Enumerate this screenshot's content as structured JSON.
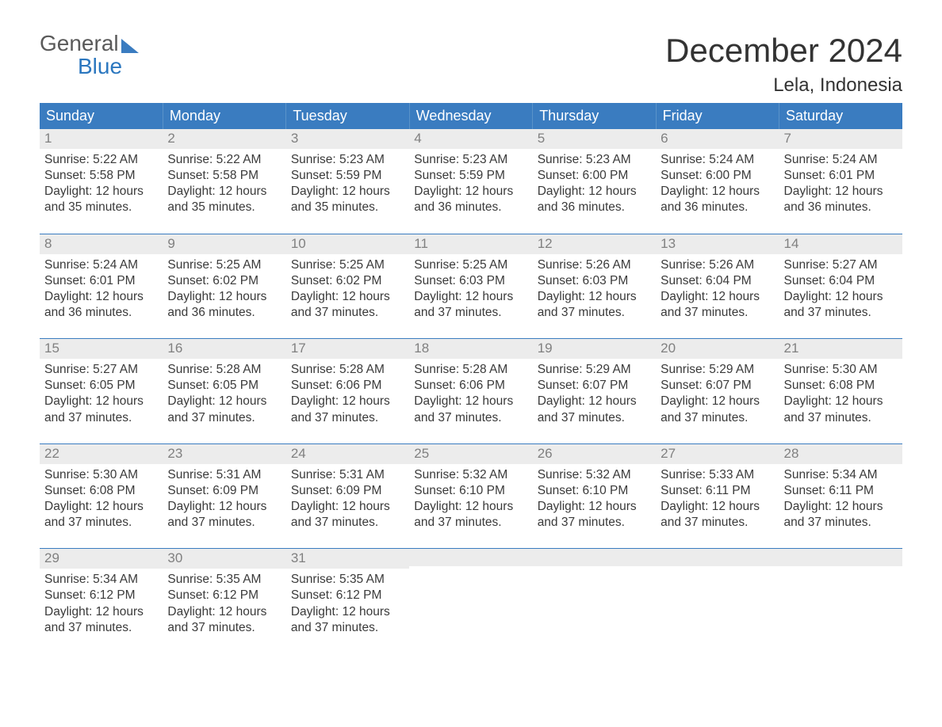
{
  "logo": {
    "line1": "General",
    "line2": "Blue"
  },
  "title": "December 2024",
  "location": "Lela, Indonesia",
  "colors": {
    "header_bg": "#3a7cc0",
    "header_text": "#ffffff",
    "daynum_bg": "#ececec",
    "daynum_text": "#808080",
    "body_text": "#3a3a3a",
    "logo_blue": "#2b77bf",
    "week_border": "#3a7cc0"
  },
  "day_names": [
    "Sunday",
    "Monday",
    "Tuesday",
    "Wednesday",
    "Thursday",
    "Friday",
    "Saturday"
  ],
  "weeks": [
    [
      {
        "n": "1",
        "sr": "5:22 AM",
        "ss": "5:58 PM",
        "dl": "12 hours and 35 minutes."
      },
      {
        "n": "2",
        "sr": "5:22 AM",
        "ss": "5:58 PM",
        "dl": "12 hours and 35 minutes."
      },
      {
        "n": "3",
        "sr": "5:23 AM",
        "ss": "5:59 PM",
        "dl": "12 hours and 35 minutes."
      },
      {
        "n": "4",
        "sr": "5:23 AM",
        "ss": "5:59 PM",
        "dl": "12 hours and 36 minutes."
      },
      {
        "n": "5",
        "sr": "5:23 AM",
        "ss": "6:00 PM",
        "dl": "12 hours and 36 minutes."
      },
      {
        "n": "6",
        "sr": "5:24 AM",
        "ss": "6:00 PM",
        "dl": "12 hours and 36 minutes."
      },
      {
        "n": "7",
        "sr": "5:24 AM",
        "ss": "6:01 PM",
        "dl": "12 hours and 36 minutes."
      }
    ],
    [
      {
        "n": "8",
        "sr": "5:24 AM",
        "ss": "6:01 PM",
        "dl": "12 hours and 36 minutes."
      },
      {
        "n": "9",
        "sr": "5:25 AM",
        "ss": "6:02 PM",
        "dl": "12 hours and 36 minutes."
      },
      {
        "n": "10",
        "sr": "5:25 AM",
        "ss": "6:02 PM",
        "dl": "12 hours and 37 minutes."
      },
      {
        "n": "11",
        "sr": "5:25 AM",
        "ss": "6:03 PM",
        "dl": "12 hours and 37 minutes."
      },
      {
        "n": "12",
        "sr": "5:26 AM",
        "ss": "6:03 PM",
        "dl": "12 hours and 37 minutes."
      },
      {
        "n": "13",
        "sr": "5:26 AM",
        "ss": "6:04 PM",
        "dl": "12 hours and 37 minutes."
      },
      {
        "n": "14",
        "sr": "5:27 AM",
        "ss": "6:04 PM",
        "dl": "12 hours and 37 minutes."
      }
    ],
    [
      {
        "n": "15",
        "sr": "5:27 AM",
        "ss": "6:05 PM",
        "dl": "12 hours and 37 minutes."
      },
      {
        "n": "16",
        "sr": "5:28 AM",
        "ss": "6:05 PM",
        "dl": "12 hours and 37 minutes."
      },
      {
        "n": "17",
        "sr": "5:28 AM",
        "ss": "6:06 PM",
        "dl": "12 hours and 37 minutes."
      },
      {
        "n": "18",
        "sr": "5:28 AM",
        "ss": "6:06 PM",
        "dl": "12 hours and 37 minutes."
      },
      {
        "n": "19",
        "sr": "5:29 AM",
        "ss": "6:07 PM",
        "dl": "12 hours and 37 minutes."
      },
      {
        "n": "20",
        "sr": "5:29 AM",
        "ss": "6:07 PM",
        "dl": "12 hours and 37 minutes."
      },
      {
        "n": "21",
        "sr": "5:30 AM",
        "ss": "6:08 PM",
        "dl": "12 hours and 37 minutes."
      }
    ],
    [
      {
        "n": "22",
        "sr": "5:30 AM",
        "ss": "6:08 PM",
        "dl": "12 hours and 37 minutes."
      },
      {
        "n": "23",
        "sr": "5:31 AM",
        "ss": "6:09 PM",
        "dl": "12 hours and 37 minutes."
      },
      {
        "n": "24",
        "sr": "5:31 AM",
        "ss": "6:09 PM",
        "dl": "12 hours and 37 minutes."
      },
      {
        "n": "25",
        "sr": "5:32 AM",
        "ss": "6:10 PM",
        "dl": "12 hours and 37 minutes."
      },
      {
        "n": "26",
        "sr": "5:32 AM",
        "ss": "6:10 PM",
        "dl": "12 hours and 37 minutes."
      },
      {
        "n": "27",
        "sr": "5:33 AM",
        "ss": "6:11 PM",
        "dl": "12 hours and 37 minutes."
      },
      {
        "n": "28",
        "sr": "5:34 AM",
        "ss": "6:11 PM",
        "dl": "12 hours and 37 minutes."
      }
    ],
    [
      {
        "n": "29",
        "sr": "5:34 AM",
        "ss": "6:12 PM",
        "dl": "12 hours and 37 minutes."
      },
      {
        "n": "30",
        "sr": "5:35 AM",
        "ss": "6:12 PM",
        "dl": "12 hours and 37 minutes."
      },
      {
        "n": "31",
        "sr": "5:35 AM",
        "ss": "6:12 PM",
        "dl": "12 hours and 37 minutes."
      },
      null,
      null,
      null,
      null
    ]
  ],
  "labels": {
    "sunrise": "Sunrise: ",
    "sunset": "Sunset: ",
    "daylight": "Daylight: "
  }
}
